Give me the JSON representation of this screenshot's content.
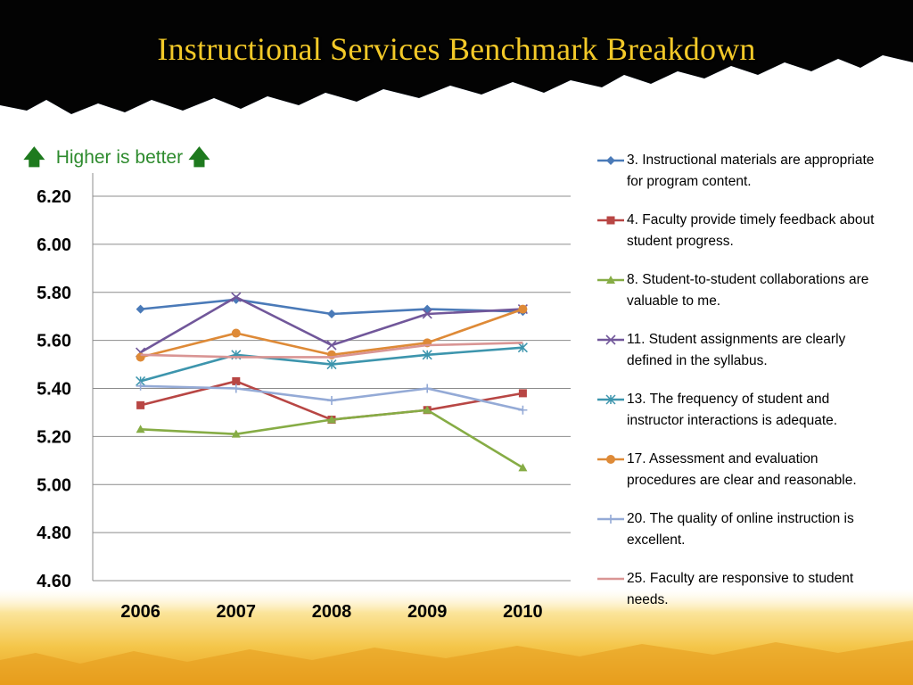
{
  "slide": {
    "title": "Instructional Services Benchmark Breakdown",
    "hint_text": "Higher is better",
    "hint_icon": "up-arrow-icon",
    "colors": {
      "title": "#f3c928",
      "hint": "#2e8b2e",
      "banner": "#0b3b76"
    }
  },
  "chart_data": {
    "type": "line",
    "title": "",
    "xlabel": "",
    "ylabel": "",
    "categories": [
      "2006",
      "2007",
      "2008",
      "2009",
      "2010"
    ],
    "y_ticks": [
      "4.60",
      "4.80",
      "5.00",
      "5.20",
      "5.40",
      "5.60",
      "5.80",
      "6.00",
      "6.20"
    ],
    "ylim": [
      4.6,
      6.2
    ],
    "grid": true,
    "legend_position": "right",
    "series": [
      {
        "name": "3. Instructional materials are appropriate for program content.",
        "color": "#4a7ab8",
        "marker": "diamond",
        "values": [
          5.73,
          5.77,
          5.71,
          5.73,
          5.72
        ]
      },
      {
        "name": "4. Faculty provide timely feedback about student progress.",
        "color": "#b84644",
        "marker": "square",
        "values": [
          5.33,
          5.43,
          5.27,
          5.31,
          5.38
        ]
      },
      {
        "name": "8. Student-to-student collaborations are valuable to me.",
        "color": "#86ac45",
        "marker": "triangle",
        "values": [
          5.23,
          5.21,
          5.27,
          5.31,
          5.07
        ]
      },
      {
        "name": "11. Student assignments are clearly defined in the syllabus.",
        "color": "#71579a",
        "marker": "x",
        "values": [
          5.55,
          5.78,
          5.58,
          5.71,
          5.73
        ]
      },
      {
        "name": "13. The frequency of student and instructor interactions is adequate.",
        "color": "#3d95ad",
        "marker": "asterisk",
        "values": [
          5.43,
          5.54,
          5.5,
          5.54,
          5.57
        ]
      },
      {
        "name": "17. Assessment and evaluation procedures are clear and reasonable.",
        "color": "#de8a37",
        "marker": "circle",
        "values": [
          5.53,
          5.63,
          5.54,
          5.59,
          5.73
        ]
      },
      {
        "name": "20. The quality of online instruction is excellent.",
        "color": "#94aad6",
        "marker": "plus",
        "values": [
          5.41,
          5.4,
          5.35,
          5.4,
          5.31
        ]
      },
      {
        "name": "25. Faculty are responsive to student needs.",
        "color": "#d99594",
        "marker": "none",
        "values": [
          5.54,
          5.53,
          5.53,
          5.58,
          5.59
        ]
      }
    ]
  }
}
